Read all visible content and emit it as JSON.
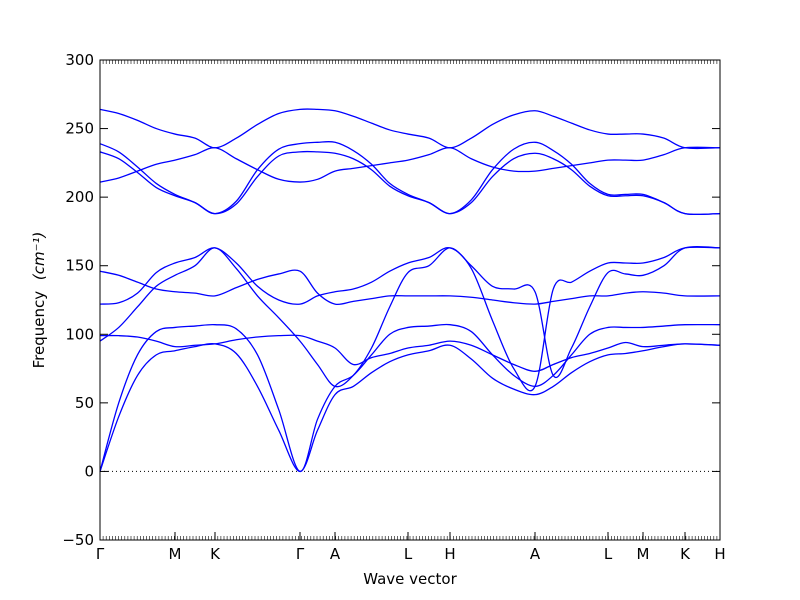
{
  "chart_data": {
    "type": "line",
    "xlabel": "Wave vector",
    "ylabel": "Frequency",
    "ylabel_unit": "(cm⁻¹)",
    "ylim": [
      -50,
      300
    ],
    "grid": false,
    "legend": "none",
    "colors": {
      "band": "#0000ff",
      "axes": "#000000",
      "zero_line": "#000000"
    },
    "y_ticks": [
      -50,
      0,
      50,
      100,
      150,
      200,
      250,
      300
    ],
    "y_tick_labels": [
      "−50",
      "0",
      "50",
      "100",
      "150",
      "200",
      "250",
      "300"
    ],
    "x_labels": [
      "Γ",
      "M",
      "K",
      "Γ",
      "A",
      "L",
      "H",
      "A",
      "L",
      "M",
      "K",
      "H"
    ],
    "zero_line": {
      "y": 0,
      "style": "dotted"
    },
    "segments": [
      {
        "from": "Γ",
        "to": "M",
        "x": [
          0,
          0.25,
          0.5,
          0.75,
          1
        ],
        "bands": [
          [
            0,
            40,
            70,
            85,
            88
          ],
          [
            0,
            50,
            85,
            102,
            105
          ],
          [
            95,
            105,
            120,
            135,
            143
          ],
          [
            122,
            123,
            130,
            145,
            152
          ],
          [
            99,
            99,
            98,
            95,
            91
          ],
          [
            146,
            143,
            138,
            133,
            131
          ],
          [
            233,
            228,
            218,
            207,
            201
          ],
          [
            239,
            233,
            222,
            210,
            202
          ],
          [
            211,
            214,
            219,
            224,
            227
          ],
          [
            264,
            261,
            256,
            250,
            246
          ]
        ]
      },
      {
        "from": "M",
        "to": "K",
        "x": [
          0,
          0.5,
          1
        ],
        "bands": [
          [
            88,
            91,
            93
          ],
          [
            105,
            106,
            107
          ],
          [
            143,
            150,
            163
          ],
          [
            152,
            156,
            163
          ],
          [
            91,
            92,
            93
          ],
          [
            131,
            130,
            128
          ],
          [
            201,
            196,
            188
          ],
          [
            202,
            196,
            188
          ],
          [
            227,
            231,
            236
          ],
          [
            246,
            243,
            236
          ]
        ]
      },
      {
        "from": "K",
        "to": "Γ",
        "x": [
          0,
          0.25,
          0.5,
          0.75,
          1
        ],
        "bands": [
          [
            93,
            86,
            62,
            30,
            0
          ],
          [
            107,
            104,
            85,
            45,
            0
          ],
          [
            163,
            148,
            128,
            112,
            95
          ],
          [
            163,
            152,
            135,
            125,
            122
          ],
          [
            93,
            96,
            98,
            99,
            99
          ],
          [
            128,
            134,
            140,
            144,
            146
          ],
          [
            188,
            195,
            215,
            230,
            233
          ],
          [
            188,
            197,
            220,
            235,
            239
          ],
          [
            236,
            228,
            220,
            213,
            211
          ],
          [
            236,
            243,
            253,
            261,
            264
          ]
        ]
      },
      {
        "from": "Γ",
        "to": "A",
        "x": [
          0,
          0.5,
          1
        ],
        "bands": [
          [
            0,
            30,
            56
          ],
          [
            0,
            38,
            62
          ],
          [
            95,
            78,
            62
          ],
          [
            122,
            128,
            131
          ],
          [
            99,
            95,
            90
          ],
          [
            146,
            130,
            122
          ],
          [
            233,
            233,
            232
          ],
          [
            239,
            240,
            240
          ],
          [
            211,
            213,
            219
          ],
          [
            264,
            264,
            263
          ]
        ]
      },
      {
        "from": "A",
        "to": "L",
        "x": [
          0,
          0.25,
          0.5,
          0.75,
          1
        ],
        "bands": [
          [
            56,
            62,
            72,
            80,
            85
          ],
          [
            62,
            70,
            85,
            100,
            105
          ],
          [
            62,
            70,
            90,
            120,
            145
          ],
          [
            131,
            133,
            138,
            146,
            152
          ],
          [
            73,
            78,
            83,
            86,
            90
          ],
          [
            122,
            124,
            126,
            128,
            128
          ],
          [
            232,
            228,
            220,
            208,
            201
          ],
          [
            240,
            234,
            224,
            210,
            202
          ],
          [
            219,
            221,
            223,
            225,
            227
          ],
          [
            263,
            259,
            254,
            249,
            246
          ]
        ]
      },
      {
        "from": "L",
        "to": "H",
        "x": [
          0,
          0.5,
          1
        ],
        "bands": [
          [
            85,
            88,
            92
          ],
          [
            105,
            106,
            107
          ],
          [
            145,
            150,
            163
          ],
          [
            152,
            156,
            163
          ],
          [
            90,
            92,
            95
          ],
          [
            128,
            128,
            128
          ],
          [
            201,
            196,
            188
          ],
          [
            202,
            196,
            188
          ],
          [
            227,
            231,
            236
          ],
          [
            246,
            243,
            236
          ]
        ]
      },
      {
        "from": "H",
        "to": "A",
        "x": [
          0,
          0.25,
          0.5,
          0.75,
          1
        ],
        "bands": [
          [
            92,
            82,
            68,
            60,
            56
          ],
          [
            107,
            102,
            85,
            70,
            62
          ],
          [
            163,
            150,
            135,
            133,
            131
          ],
          [
            163,
            148,
            110,
            75,
            62
          ],
          [
            95,
            92,
            85,
            78,
            73
          ],
          [
            128,
            127,
            125,
            123,
            122
          ],
          [
            188,
            196,
            215,
            228,
            232
          ],
          [
            188,
            198,
            220,
            235,
            240
          ],
          [
            236,
            228,
            222,
            219,
            219
          ],
          [
            236,
            243,
            253,
            260,
            263
          ]
        ]
      },
      {
        "from": "A",
        "to": "L",
        "x": [
          0,
          0.25,
          0.5,
          0.75,
          1
        ],
        "bands": [
          [
            56,
            62,
            72,
            80,
            85
          ],
          [
            62,
            70,
            85,
            100,
            105
          ],
          [
            62,
            70,
            90,
            120,
            145
          ],
          [
            131,
            133,
            138,
            146,
            152
          ],
          [
            73,
            78,
            83,
            86,
            90
          ],
          [
            122,
            124,
            126,
            128,
            128
          ],
          [
            232,
            228,
            220,
            208,
            201
          ],
          [
            240,
            234,
            224,
            210,
            202
          ],
          [
            219,
            221,
            223,
            225,
            227
          ],
          [
            263,
            259,
            254,
            249,
            246
          ]
        ]
      },
      {
        "from": "L",
        "to": "M",
        "x": [
          0,
          0.5,
          1
        ],
        "bands": [
          [
            85,
            86,
            88
          ],
          [
            105,
            105,
            105
          ],
          [
            145,
            144,
            143
          ],
          [
            152,
            152,
            152
          ],
          [
            96,
            94,
            91
          ],
          [
            128,
            130,
            131
          ],
          [
            201,
            201,
            201
          ],
          [
            202,
            202,
            202
          ],
          [
            227,
            227,
            227
          ],
          [
            246,
            246,
            246
          ]
        ]
      },
      {
        "from": "M",
        "to": "K",
        "x": [
          0,
          0.5,
          1
        ],
        "bands": [
          [
            88,
            91,
            93
          ],
          [
            105,
            106,
            107
          ],
          [
            143,
            150,
            163
          ],
          [
            152,
            156,
            163
          ],
          [
            91,
            92,
            93
          ],
          [
            131,
            130,
            128
          ],
          [
            201,
            196,
            188
          ],
          [
            202,
            196,
            188
          ],
          [
            227,
            231,
            236
          ],
          [
            246,
            243,
            236
          ]
        ]
      },
      {
        "from": "K",
        "to": "H",
        "x": [
          0,
          1
        ],
        "bands": [
          [
            92,
            92
          ],
          [
            107,
            107
          ],
          [
            163,
            163
          ],
          [
            163,
            163
          ],
          [
            92,
            92
          ],
          [
            128,
            128
          ],
          [
            188,
            188
          ],
          [
            188,
            188
          ],
          [
            236,
            236
          ],
          [
            236,
            236
          ]
        ]
      }
    ]
  }
}
